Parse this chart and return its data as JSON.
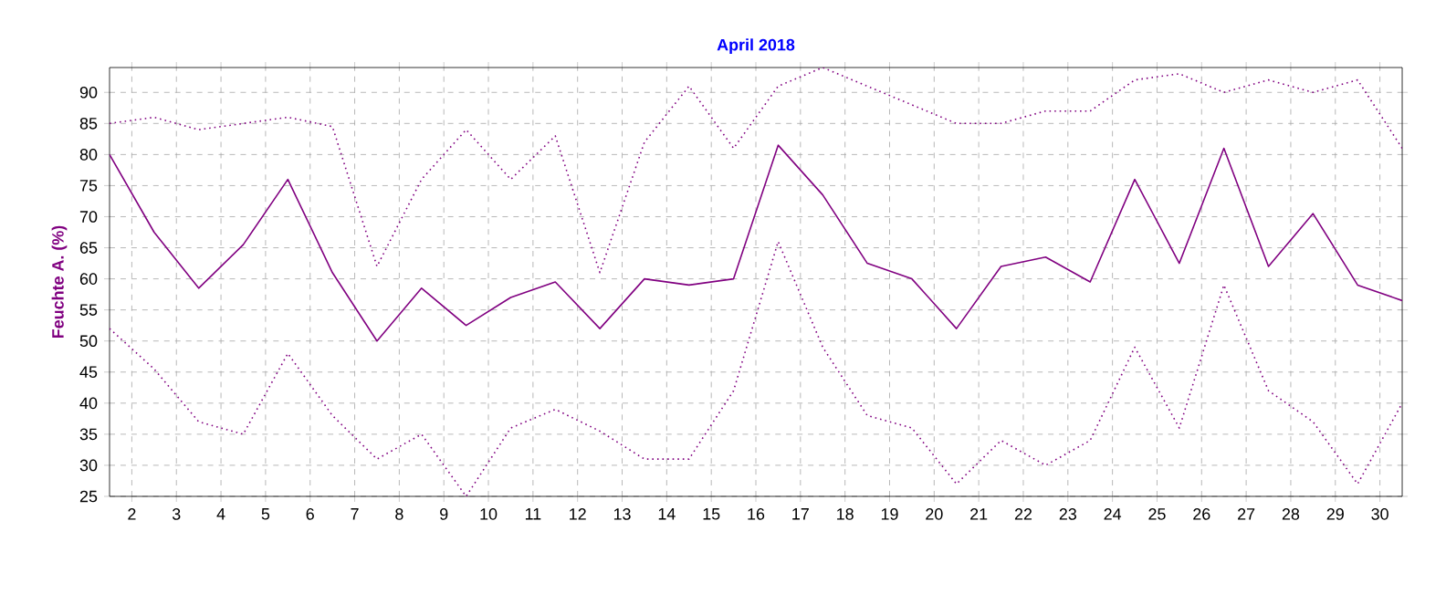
{
  "chart_data": {
    "type": "line",
    "title": "April 2018",
    "ylabel": "Feuchte A.  (%)",
    "x": [
      1.5,
      2.5,
      3.5,
      4.5,
      5.5,
      6.5,
      7.5,
      8.5,
      9.5,
      10.5,
      11.5,
      12.5,
      13.5,
      14.5,
      15.5,
      16.5,
      17.5,
      18.5,
      19.5,
      20.5,
      21.5,
      22.5,
      23.5,
      24.5,
      25.5,
      26.5,
      27.5,
      28.5,
      29.5,
      30.5
    ],
    "series": [
      {
        "color": "#800080",
        "line_style": "dotted",
        "values": [
          85,
          86,
          84,
          85,
          86,
          84.5,
          62,
          76,
          84,
          76,
          83,
          61,
          82,
          91,
          81,
          91,
          94,
          91,
          88,
          85,
          85,
          87,
          87,
          92,
          93,
          90,
          92,
          90,
          92,
          81
        ]
      },
      {
        "color": "#800080",
        "line_style": "solid",
        "values": [
          80,
          67.5,
          58.5,
          65.5,
          76,
          61,
          50,
          58.5,
          52.5,
          57,
          59.5,
          52,
          60,
          59,
          60,
          81.5,
          73.5,
          62.5,
          60,
          52,
          62,
          63.5,
          59.5,
          76,
          62.5,
          81,
          62,
          70.5,
          59,
          56.5
        ]
      },
      {
        "color": "#800080",
        "line_style": "dotted",
        "values": [
          52,
          45.5,
          37,
          35,
          48,
          38,
          31,
          35,
          25,
          36,
          39,
          35.5,
          31,
          31,
          42,
          66,
          49,
          38,
          36,
          27,
          34,
          30,
          34,
          49,
          36,
          59,
          42,
          37,
          27,
          40
        ]
      }
    ],
    "xlim": [
      1.5,
      30.5
    ],
    "ylim": [
      25,
      94
    ],
    "xticks": [
      2,
      3,
      4,
      5,
      6,
      7,
      8,
      9,
      10,
      11,
      12,
      13,
      14,
      15,
      16,
      17,
      18,
      19,
      20,
      21,
      22,
      23,
      24,
      25,
      26,
      27,
      28,
      29,
      30
    ],
    "yticks": [
      25,
      30,
      35,
      40,
      45,
      50,
      55,
      60,
      65,
      70,
      75,
      80,
      85,
      90
    ],
    "grid": true,
    "marker": "none"
  }
}
